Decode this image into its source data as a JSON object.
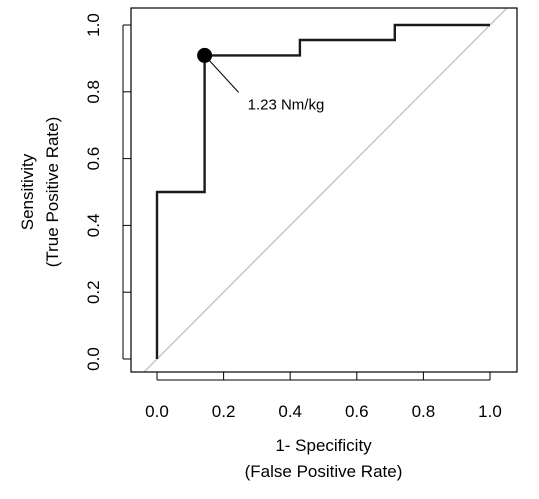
{
  "chart_data": {
    "type": "line",
    "title": "",
    "xlabel": [
      "1- Specificity",
      "(False Positive Rate)"
    ],
    "ylabel": [
      "Sensitivity",
      "(True Positive Rate)"
    ],
    "xlim": [
      0,
      1
    ],
    "ylim": [
      0,
      1
    ],
    "grid": false,
    "x_ticks": [
      "0.0",
      "0.2",
      "0.4",
      "0.6",
      "0.8",
      "1.0"
    ],
    "y_ticks": [
      "0.0",
      "0.2",
      "0.4",
      "0.6",
      "0.8",
      "1.0"
    ],
    "series": [
      {
        "kind": "roc-step",
        "x": [
          0.0,
          0.0,
          0.143,
          0.143,
          0.429,
          0.429,
          0.714,
          0.714,
          1.0
        ],
        "y": [
          0.0,
          0.5,
          0.5,
          0.909,
          0.909,
          0.955,
          0.955,
          1.0,
          1.0
        ]
      },
      {
        "kind": "chance-diagonal",
        "x": [
          0.0,
          1.0
        ],
        "y": [
          0.0,
          1.0
        ]
      }
    ],
    "marker": {
      "x": 0.143,
      "y": 0.909
    },
    "annotation": {
      "text": "1.23 Nm/kg",
      "x": 0.143,
      "y": 0.909
    },
    "colors": {
      "roc_line": "#1a1a1a",
      "diagonal": "#c8c8c8",
      "frame": "#000000",
      "marker": "#000000"
    }
  }
}
